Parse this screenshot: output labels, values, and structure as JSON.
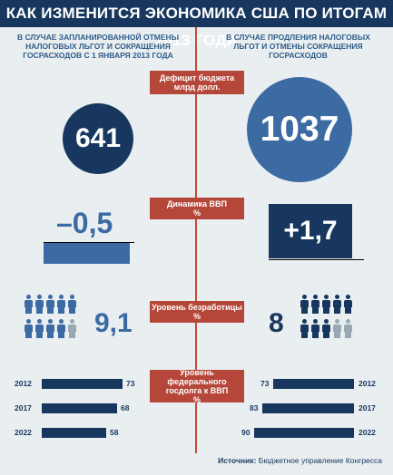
{
  "title": "КАК ИЗМЕНИТСЯ ЭКОНОМИКА США ПО ИТОГАМ 2013 ГОДА",
  "left_scenario": "В СЛУЧАЕ ЗАПЛАНИРОВАННОЙ ОТМЕНЫ НАЛОГОВЫХ ЛЬГОТ И СОКРАЩЕНИЯ ГОСРАСХОДОВ С 1 ЯНВАРЯ 2013 ГОДА",
  "right_scenario": "В СЛУЧАЕ ПРОДЛЕНИЯ НАЛОГОВЫХ ЛЬГОТ И ОТМЕНЫ СОКРАЩЕНИЯ ГОСРАСХОДОВ",
  "labels": {
    "deficit": [
      "Дефицит бюджета",
      "млрд долл."
    ],
    "gdp": [
      "Динамика ВВП",
      "%"
    ],
    "unemployment": [
      "Уровень безработицы",
      "%"
    ],
    "debt": [
      "Уровень федерального",
      "госдолга к ВВП",
      "%"
    ]
  },
  "deficit": {
    "left": "641",
    "right": "1037"
  },
  "gdp": {
    "left": "–0,5",
    "right": "+1,7"
  },
  "unemployment": {
    "left": "9,1",
    "right": "8",
    "left_highlight": 9,
    "right_highlight": 8,
    "total_figures": 10
  },
  "debt": {
    "left": [
      {
        "year": "2012",
        "value": 73
      },
      {
        "year": "2017",
        "value": 68
      },
      {
        "year": "2022",
        "value": 58
      }
    ],
    "right": [
      {
        "year": "2012",
        "value": 73
      },
      {
        "year": "2017",
        "value": 83
      },
      {
        "year": "2022",
        "value": 90
      }
    ]
  },
  "source": {
    "label": "Источник:",
    "text": "Бюджетное управление Конгресса"
  },
  "colors": {
    "navy": "#17375e",
    "blue": "#3c6aa3",
    "red": "#b5473a",
    "grey": "#9aa8b3"
  }
}
